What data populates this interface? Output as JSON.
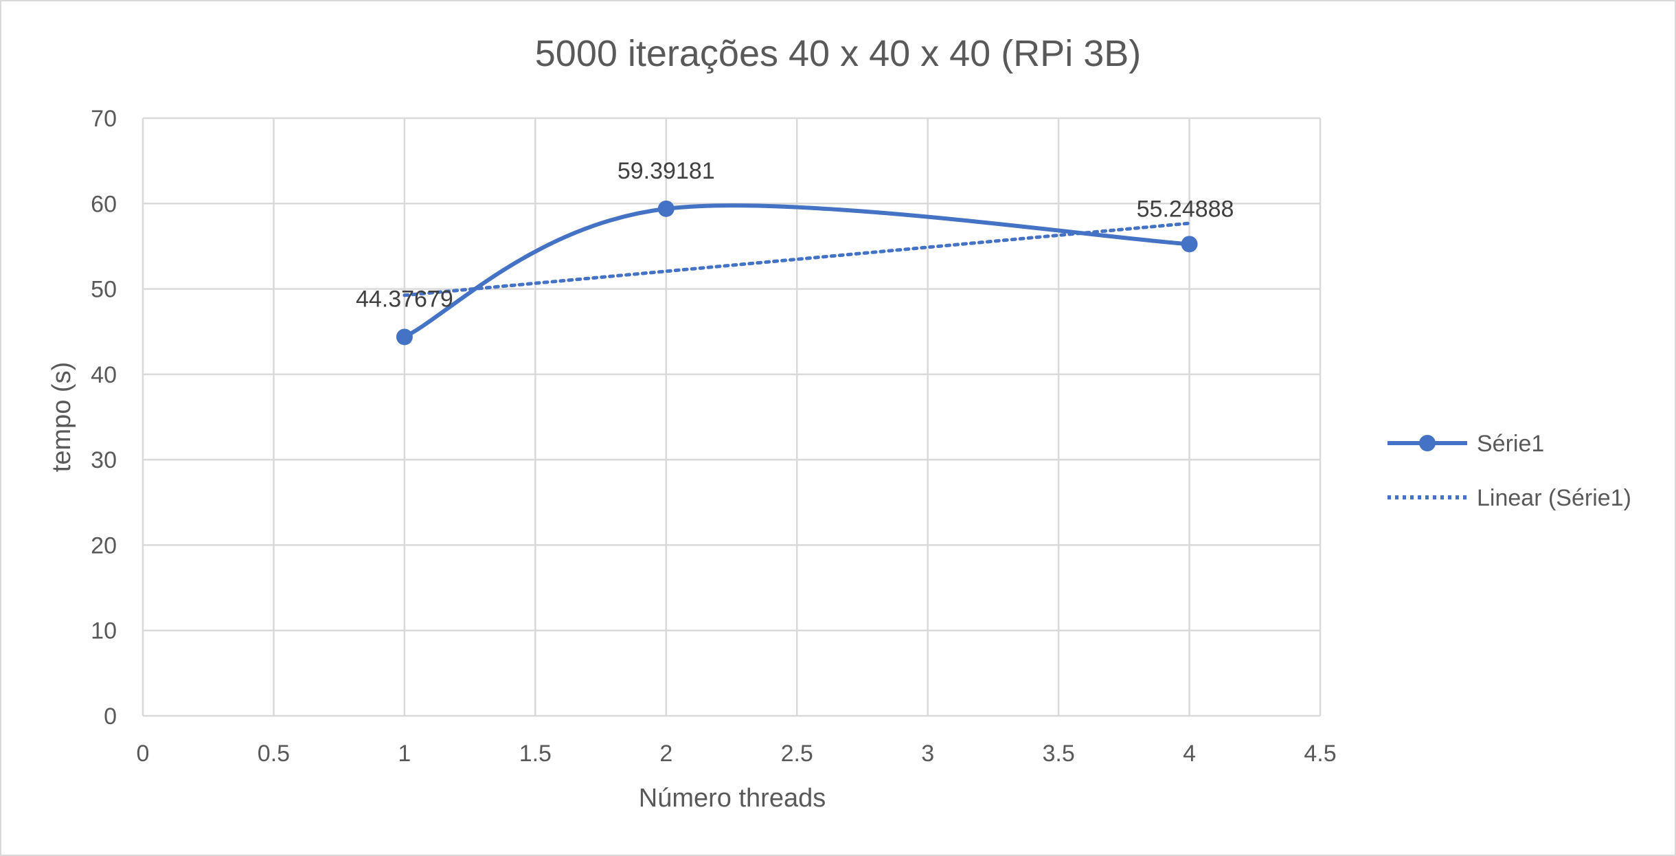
{
  "chart_data": {
    "type": "scatter",
    "title": "5000 iterações 40 x 40 x 40 (RPi 3B)",
    "xlabel": "Número threads",
    "ylabel": "tempo (s)",
    "xlim": [
      0,
      4.5
    ],
    "ylim": [
      0,
      70
    ],
    "x_ticks": [
      0,
      0.5,
      1,
      1.5,
      2,
      2.5,
      3,
      3.5,
      4,
      4.5
    ],
    "y_ticks": [
      0,
      10,
      20,
      30,
      40,
      50,
      60,
      70
    ],
    "grid": true,
    "smooth_line": true,
    "legend_position": "right",
    "series": [
      {
        "name": "Série1",
        "color": "#4472c4",
        "x": [
          1,
          2,
          4
        ],
        "y": [
          44.37679,
          59.39181,
          55.24888
        ],
        "data_labels": [
          "44.37679",
          "59.39181",
          "55.24888"
        ]
      }
    ],
    "trendline": {
      "name": "Linear (Série1)",
      "type": "linear",
      "style": "dotted",
      "color": "#4472c4",
      "x_range": [
        1,
        4
      ]
    }
  }
}
